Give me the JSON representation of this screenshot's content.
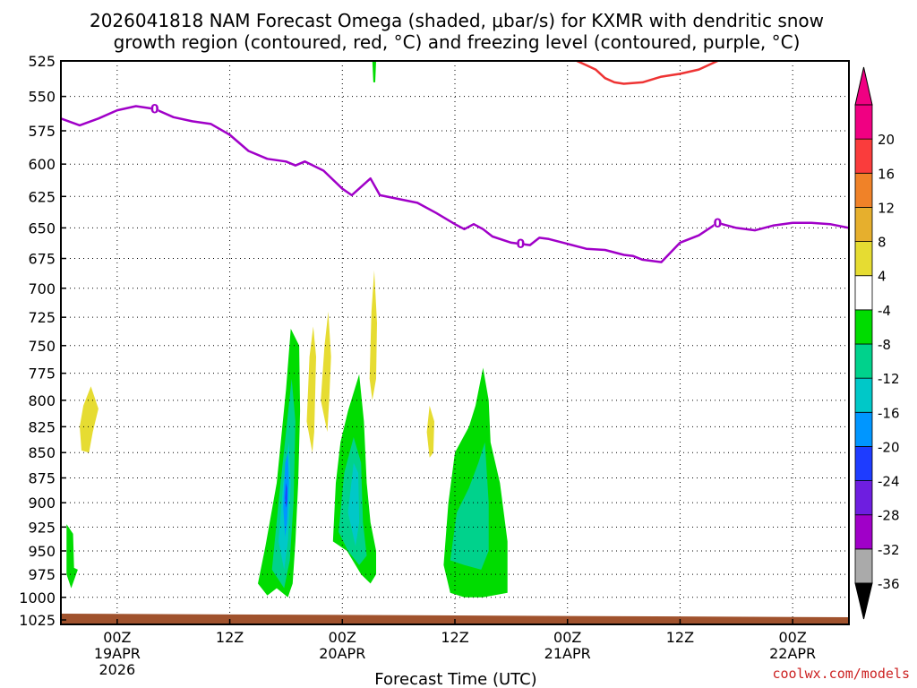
{
  "chart_data": {
    "type": "contour",
    "title_line1": "2026041818 NAM Forecast Omega (shaded, μbar/s) for KXMR with dendritic snow",
    "title_line2": "growth region (contoured, red, °C) and freezing level (contoured, purple, °C)",
    "xlabel": "Forecast Time (UTC)",
    "credit": "coolwx.com/models",
    "x_range_hours": [
      0,
      84
    ],
    "y_range_mb": [
      525,
      1030
    ],
    "y_ticks": [
      525,
      550,
      575,
      600,
      625,
      650,
      675,
      700,
      725,
      750,
      775,
      800,
      825,
      850,
      875,
      900,
      925,
      950,
      975,
      1000,
      1025
    ],
    "x_ticks": [
      {
        "hour": 6,
        "line1": "00Z",
        "line2": "19APR",
        "line3": "2026"
      },
      {
        "hour": 18,
        "line1": "12Z",
        "line2": "",
        "line3": ""
      },
      {
        "hour": 30,
        "line1": "00Z",
        "line2": "20APR",
        "line3": ""
      },
      {
        "hour": 42,
        "line1": "12Z",
        "line2": "",
        "line3": ""
      },
      {
        "hour": 54,
        "line1": "00Z",
        "line2": "21APR",
        "line3": ""
      },
      {
        "hour": 66,
        "line1": "12Z",
        "line2": "",
        "line3": ""
      },
      {
        "hour": 78,
        "line1": "00Z",
        "line2": "22APR",
        "line3": ""
      }
    ],
    "freezing_level": {
      "label": "0",
      "color": "#a000c8",
      "points": [
        [
          0,
          566
        ],
        [
          2,
          571
        ],
        [
          4,
          566
        ],
        [
          6,
          560
        ],
        [
          8,
          557
        ],
        [
          10,
          559
        ],
        [
          12,
          565
        ],
        [
          14,
          568
        ],
        [
          16,
          570
        ],
        [
          18,
          578
        ],
        [
          20,
          590
        ],
        [
          22,
          596
        ],
        [
          24,
          598
        ],
        [
          25,
          601
        ],
        [
          26,
          598
        ],
        [
          28,
          605
        ],
        [
          30,
          619
        ],
        [
          31,
          624
        ],
        [
          33,
          611
        ],
        [
          34,
          624
        ],
        [
          36,
          627
        ],
        [
          38,
          630
        ],
        [
          40,
          638
        ],
        [
          42,
          647
        ],
        [
          43,
          651
        ],
        [
          44,
          647
        ],
        [
          45,
          651
        ],
        [
          46,
          657
        ],
        [
          48,
          662
        ],
        [
          50,
          664
        ],
        [
          51,
          658
        ],
        [
          52,
          659
        ],
        [
          54,
          663
        ],
        [
          56,
          667
        ],
        [
          58,
          668
        ],
        [
          60,
          672
        ],
        [
          61,
          673
        ],
        [
          62,
          676
        ],
        [
          64,
          678
        ],
        [
          66,
          662
        ],
        [
          68,
          656
        ],
        [
          70,
          646
        ],
        [
          72,
          650
        ],
        [
          74,
          652
        ],
        [
          76,
          648
        ],
        [
          78,
          646
        ],
        [
          80,
          646
        ],
        [
          82,
          647
        ],
        [
          84,
          650
        ]
      ],
      "label_hours": [
        10,
        49,
        70
      ]
    },
    "dgz_contour": {
      "label": "dendritic snow growth region",
      "color": "#ee3333",
      "points": [
        [
          55,
          525
        ],
        [
          56,
          528
        ],
        [
          57,
          531
        ],
        [
          58,
          537
        ],
        [
          59,
          540
        ],
        [
          60,
          541
        ],
        [
          62,
          540
        ],
        [
          64,
          536
        ],
        [
          66,
          534
        ],
        [
          68,
          531
        ],
        [
          70,
          525
        ]
      ]
    },
    "terrain": {
      "color": "#a0522d",
      "surface_mb_left": 1018,
      "surface_mb_right": 1022
    },
    "omega_colorbar": {
      "levels": [
        -36,
        -32,
        -28,
        -24,
        -20,
        -16,
        -12,
        -8,
        -4,
        4,
        8,
        12,
        16,
        20
      ],
      "colors": [
        "#aaaaaa",
        "#a000c8",
        "#6e1ee0",
        "#1e3cff",
        "#0096ff",
        "#00c8c8",
        "#00d28c",
        "#00dc00",
        "#ffffff",
        "#e6dc32",
        "#e6af2d",
        "#f08228",
        "#fa3c3c",
        "#f00082"
      ],
      "under_color": "#000000",
      "over_color": "#f00082"
    },
    "omega_areas": [
      {
        "name": "sink-early",
        "range": "4 to 8",
        "color": "#e6dc32",
        "points": [
          [
            2.2,
            848
          ],
          [
            2.0,
            825
          ],
          [
            2.4,
            805
          ],
          [
            3.2,
            787
          ],
          [
            4.0,
            808
          ],
          [
            3.4,
            830
          ],
          [
            3.0,
            850
          ]
        ]
      },
      {
        "name": "lift-early",
        "range": "-4 to -8",
        "color": "#00dc00",
        "points": [
          [
            0.6,
            922
          ],
          [
            1.3,
            932
          ],
          [
            1.4,
            968
          ],
          [
            1.8,
            970
          ],
          [
            1.1,
            990
          ],
          [
            0.6,
            975
          ]
        ]
      },
      {
        "name": "lift-wave1",
        "range": "-4 to -8",
        "color": "#00dc00",
        "points": [
          [
            21.0,
            985
          ],
          [
            21.8,
            945
          ],
          [
            23.0,
            880
          ],
          [
            24.0,
            790
          ],
          [
            24.5,
            735
          ],
          [
            25.4,
            750
          ],
          [
            25.5,
            810
          ],
          [
            25.3,
            880
          ],
          [
            25.0,
            940
          ],
          [
            24.7,
            985
          ],
          [
            24.2,
            1000
          ],
          [
            23.0,
            990
          ],
          [
            22.0,
            998
          ]
        ]
      },
      {
        "name": "lift-wave1-core",
        "range": "-8 to -12",
        "color": "#00d28c",
        "points": [
          [
            22.5,
            970
          ],
          [
            23.2,
            900
          ],
          [
            24.0,
            830
          ],
          [
            24.6,
            780
          ],
          [
            25.0,
            820
          ],
          [
            24.8,
            900
          ],
          [
            24.4,
            960
          ],
          [
            23.8,
            990
          ]
        ]
      },
      {
        "name": "lift-wave1-inner",
        "range": "-12 to -16",
        "color": "#00c8c8",
        "points": [
          [
            23.2,
            940
          ],
          [
            23.7,
            880
          ],
          [
            24.3,
            840
          ],
          [
            24.5,
            880
          ],
          [
            24.2,
            940
          ],
          [
            23.8,
            970
          ]
        ]
      },
      {
        "name": "lift-wave1-max",
        "range": "-16 to -20",
        "color": "#0096ff",
        "points": [
          [
            23.7,
            905
          ],
          [
            23.9,
            860
          ],
          [
            24.2,
            850
          ],
          [
            24.3,
            880
          ],
          [
            24.1,
            920
          ],
          [
            23.9,
            935
          ]
        ]
      },
      {
        "name": "lift-wave1-peak",
        "range": "-20 to -24",
        "color": "#1e3cff",
        "points": [
          [
            23.9,
            895
          ],
          [
            24.0,
            880
          ],
          [
            24.1,
            885
          ],
          [
            24.1,
            900
          ],
          [
            24.0,
            905
          ]
        ]
      },
      {
        "name": "sink-a",
        "range": "4 to 8",
        "color": "#e6dc32",
        "points": [
          [
            26.2,
            820
          ],
          [
            26.5,
            760
          ],
          [
            26.9,
            733
          ],
          [
            27.2,
            760
          ],
          [
            27.0,
            830
          ],
          [
            26.8,
            850
          ]
        ]
      },
      {
        "name": "sink-b",
        "range": "4 to 8",
        "color": "#e6dc32",
        "points": [
          [
            27.7,
            800
          ],
          [
            28.1,
            750
          ],
          [
            28.5,
            720
          ],
          [
            28.8,
            760
          ],
          [
            28.6,
            800
          ],
          [
            28.4,
            830
          ]
        ]
      },
      {
        "name": "sink-c",
        "range": "4 to 8",
        "color": "#e6dc32",
        "points": [
          [
            32.9,
            780
          ],
          [
            33.1,
            720
          ],
          [
            33.4,
            685
          ],
          [
            33.7,
            730
          ],
          [
            33.6,
            780
          ],
          [
            33.2,
            800
          ]
        ]
      },
      {
        "name": "lift-wave2",
        "range": "-4 to -8",
        "color": "#00dc00",
        "points": [
          [
            29.0,
            940
          ],
          [
            29.3,
            880
          ],
          [
            29.8,
            840
          ],
          [
            30.6,
            810
          ],
          [
            31.8,
            776
          ],
          [
            32.3,
            820
          ],
          [
            32.6,
            880
          ],
          [
            33.0,
            920
          ],
          [
            33.6,
            950
          ],
          [
            33.6,
            975
          ],
          [
            33.0,
            985
          ],
          [
            32.0,
            975
          ],
          [
            30.5,
            950
          ]
        ]
      },
      {
        "name": "lift-wave2-core",
        "range": "-8 to -12",
        "color": "#00d28c",
        "points": [
          [
            29.6,
            930
          ],
          [
            30.2,
            870
          ],
          [
            31.2,
            835
          ],
          [
            32.0,
            860
          ],
          [
            32.2,
            920
          ],
          [
            32.6,
            955
          ],
          [
            31.8,
            965
          ],
          [
            30.6,
            950
          ]
        ]
      },
      {
        "name": "lift-wave2-inner",
        "range": "-12 to -16",
        "color": "#00c8c8",
        "points": [
          [
            30.6,
            910
          ],
          [
            31.2,
            860
          ],
          [
            31.7,
            870
          ],
          [
            31.8,
            920
          ],
          [
            31.4,
            945
          ]
        ]
      },
      {
        "name": "sink-d",
        "range": "4 to 8",
        "color": "#e6dc32",
        "points": [
          [
            39.0,
            830
          ],
          [
            39.3,
            805
          ],
          [
            39.8,
            820
          ],
          [
            39.7,
            850
          ],
          [
            39.3,
            855
          ]
        ]
      },
      {
        "name": "lift-wave3",
        "range": "-4 to -8",
        "color": "#00dc00",
        "points": [
          [
            40.8,
            965
          ],
          [
            41.3,
            900
          ],
          [
            42.0,
            850
          ],
          [
            43.5,
            825
          ],
          [
            44.2,
            805
          ],
          [
            45.0,
            770
          ],
          [
            45.6,
            800
          ],
          [
            45.8,
            840
          ],
          [
            46.8,
            880
          ],
          [
            47.6,
            940
          ],
          [
            47.6,
            995
          ],
          [
            45.0,
            1000
          ],
          [
            43.0,
            1000
          ],
          [
            41.5,
            995
          ]
        ]
      },
      {
        "name": "lift-wave3-core",
        "range": "-8 to -12",
        "color": "#00d28c",
        "points": [
          [
            41.5,
            960
          ],
          [
            42.2,
            910
          ],
          [
            43.5,
            885
          ],
          [
            44.5,
            860
          ],
          [
            45.2,
            840
          ],
          [
            45.6,
            900
          ],
          [
            45.6,
            950
          ],
          [
            44.8,
            970
          ],
          [
            43.0,
            965
          ]
        ]
      },
      {
        "name": "lift-top",
        "range": "-4 to -8",
        "color": "#00dc00",
        "points": [
          [
            33.2,
            525
          ],
          [
            33.6,
            525
          ],
          [
            33.5,
            540
          ],
          [
            33.3,
            540
          ]
        ]
      }
    ]
  }
}
